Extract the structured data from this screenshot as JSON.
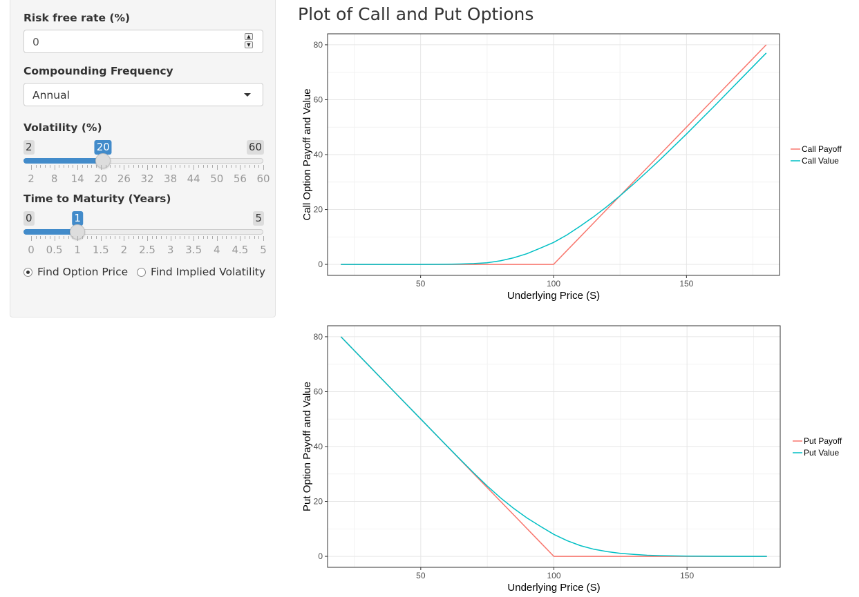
{
  "sidebar": {
    "risk_free": {
      "label": "Risk free rate (%)",
      "value": "0"
    },
    "compounding": {
      "label": "Compounding Frequency",
      "selected": "Annual"
    },
    "volatility": {
      "label": "Volatility (%)",
      "min": "2",
      "max": "60",
      "value": "20",
      "fraction": 0.3103,
      "ticks": [
        "2",
        "8",
        "14",
        "20",
        "26",
        "32",
        "38",
        "44",
        "50",
        "56",
        "60"
      ]
    },
    "maturity": {
      "label": "Time to Maturity (Years)",
      "min": "0",
      "max": "5",
      "value": "1",
      "fraction": 0.2,
      "ticks": [
        "0",
        "0.5",
        "1",
        "1.5",
        "2",
        "2.5",
        "3",
        "3.5",
        "4",
        "4.5",
        "5"
      ]
    },
    "mode": {
      "options": [
        "Find Option Price",
        "Find Implied Volatility"
      ],
      "selected": "Find Option Price"
    }
  },
  "main": {
    "title": "Plot of Call and Put Options"
  },
  "colors": {
    "payoff": "#f8766d",
    "value": "#00bfc4",
    "accent": "#428bca"
  },
  "chart_data": [
    {
      "type": "line",
      "xlabel": "Underlying Price (S)",
      "ylabel": "Call Option Payoff and Value",
      "xlim": [
        15,
        185
      ],
      "ylim": [
        -4,
        84
      ],
      "xticks": [
        50,
        100,
        150
      ],
      "yticks": [
        0,
        20,
        40,
        60,
        80
      ],
      "grid": true,
      "legend_position": "right",
      "x": [
        20,
        30,
        40,
        50,
        60,
        65,
        70,
        75,
        80,
        85,
        90,
        95,
        100,
        105,
        110,
        115,
        120,
        125,
        130,
        135,
        140,
        150,
        160,
        170,
        180
      ],
      "series": [
        {
          "name": "Call Payoff",
          "values": [
            0,
            0,
            0,
            0,
            0,
            0,
            0,
            0,
            0,
            0,
            0,
            0,
            0,
            5,
            10,
            15,
            20,
            25,
            30,
            35,
            40,
            50,
            60,
            70,
            80
          ]
        },
        {
          "name": "Call Value",
          "values": [
            0,
            0,
            0,
            0,
            0.05,
            0.15,
            0.3,
            0.6,
            1.3,
            2.4,
            3.9,
            5.9,
            8.0,
            10.7,
            13.9,
            17.3,
            21.0,
            25.0,
            29.2,
            33.6,
            38.1,
            47.5,
            57.2,
            67.1,
            77.0
          ]
        }
      ]
    },
    {
      "type": "line",
      "xlabel": "Underlying Price (S)",
      "ylabel": "Put Option Payoff and Value",
      "xlim": [
        15,
        185
      ],
      "ylim": [
        -4,
        84
      ],
      "xticks": [
        50,
        100,
        150
      ],
      "yticks": [
        0,
        20,
        40,
        60,
        80
      ],
      "grid": true,
      "legend_position": "right",
      "x": [
        20,
        30,
        40,
        50,
        60,
        65,
        70,
        75,
        80,
        85,
        90,
        95,
        100,
        105,
        110,
        115,
        120,
        125,
        130,
        135,
        140,
        150,
        160,
        170,
        180
      ],
      "series": [
        {
          "name": "Put Payoff",
          "values": [
            80,
            70,
            60,
            50,
            40,
            35,
            30,
            25,
            20,
            15,
            10,
            5,
            0,
            0,
            0,
            0,
            0,
            0,
            0,
            0,
            0,
            0,
            0,
            0,
            0
          ]
        },
        {
          "name": "Put Value",
          "values": [
            80,
            70,
            60,
            50,
            40.05,
            35.15,
            30.3,
            25.6,
            21.3,
            17.4,
            13.9,
            10.9,
            8.0,
            5.7,
            3.9,
            2.6,
            1.7,
            1.1,
            0.7,
            0.4,
            0.25,
            0.1,
            0.03,
            0.01,
            0
          ]
        }
      ]
    }
  ]
}
